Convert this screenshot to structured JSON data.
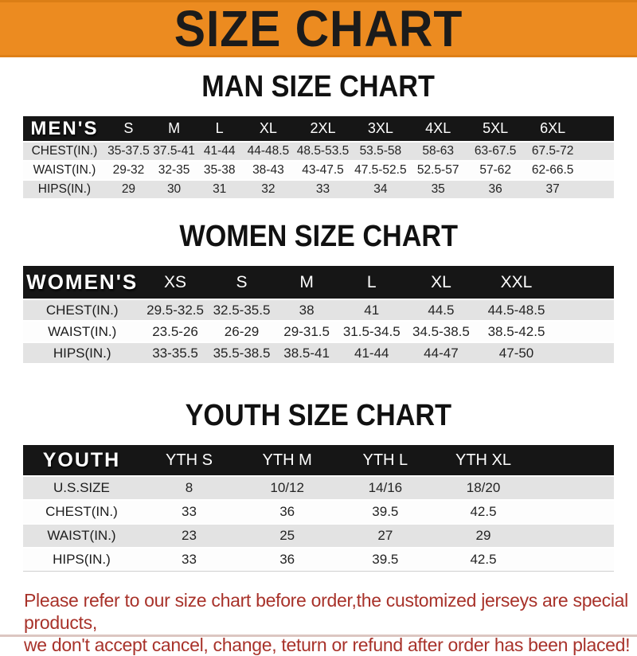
{
  "banner": {
    "title": "SIZE CHART"
  },
  "sections": [
    {
      "title": "MAN SIZE CHART",
      "band_label": "MEN'S",
      "columns": [
        "S",
        "M",
        "L",
        "XL",
        "2XL",
        "3XL",
        "4XL",
        "5XL",
        "6XL"
      ],
      "rows": [
        {
          "label": "CHEST(IN.)",
          "values": [
            "35-37.5",
            "37.5-41",
            "41-44",
            "44-48.5",
            "48.5-53.5",
            "53.5-58",
            "58-63",
            "63-67.5",
            "67.5-72"
          ]
        },
        {
          "label": "WAIST(IN.)",
          "values": [
            "29-32",
            "32-35",
            "35-38",
            "38-43",
            "43-47.5",
            "47.5-52.5",
            "52.5-57",
            "57-62",
            "62-66.5"
          ]
        },
        {
          "label": "HIPS(IN.)",
          "values": [
            "29",
            "30",
            "31",
            "32",
            "33",
            "34",
            "35",
            "36",
            "37"
          ]
        }
      ]
    },
    {
      "title": "WOMEN SIZE CHART",
      "band_label": "WOMEN'S",
      "columns": [
        "XS",
        "S",
        "M",
        "L",
        "XL",
        "XXL"
      ],
      "rows": [
        {
          "label": "CHEST(IN.)",
          "values": [
            "29.5-32.5",
            "32.5-35.5",
            "38",
            "41",
            "44.5",
            "44.5-48.5"
          ]
        },
        {
          "label": "WAIST(IN.)",
          "values": [
            "23.5-26",
            "26-29",
            "29-31.5",
            "31.5-34.5",
            "34.5-38.5",
            "38.5-42.5"
          ]
        },
        {
          "label": "HIPS(IN.)",
          "values": [
            "33-35.5",
            "35.5-38.5",
            "38.5-41",
            "41-44",
            "44-47",
            "47-50"
          ]
        }
      ]
    },
    {
      "title": "YOUTH SIZE CHART",
      "band_label": "YOUTH",
      "columns": [
        "YTH S",
        "YTH M",
        "YTH L",
        "YTH XL"
      ],
      "rows": [
        {
          "label": "U.S.SIZE",
          "values": [
            "8",
            "10/12",
            "14/16",
            "18/20"
          ]
        },
        {
          "label": "CHEST(IN.)",
          "values": [
            "33",
            "36",
            "39.5",
            "42.5"
          ]
        },
        {
          "label": "WAIST(IN.)",
          "values": [
            "23",
            "25",
            "27",
            "29"
          ]
        },
        {
          "label": "HIPS(IN.)",
          "values": [
            "33",
            "36",
            "39.5",
            "42.5"
          ]
        }
      ]
    }
  ],
  "disclaimer": {
    "line1": "Please refer to our size chart before order,the customized jerseys are special products,",
    "line2": "we don't accept cancel, change, teturn or refund after order has been placed!"
  },
  "colors": {
    "accent_orange": "#EC8B20",
    "band_black": "#161616",
    "row_gray": "#E3E3E3",
    "disclaimer_red": "#A8322A"
  }
}
